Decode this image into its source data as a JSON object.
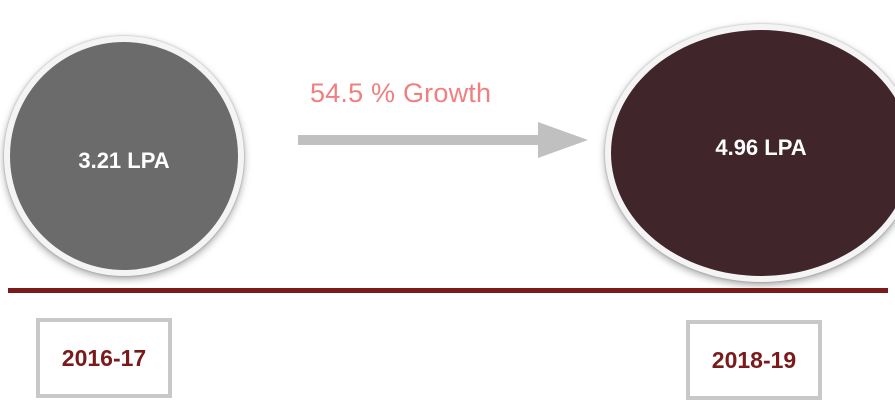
{
  "left": {
    "value_label": "3.21 LPA",
    "year": "2016-17",
    "color": "#6b6b6b"
  },
  "right": {
    "value_label": "4.96 LPA",
    "year": "2018-19",
    "color": "#40252a"
  },
  "growth": {
    "label": "54.5 % Growth",
    "color": "#f08080"
  },
  "arrow_icon": "right-arrow-icon",
  "colors": {
    "divider": "#7a1a1a",
    "year_text": "#7a1a1a",
    "arrow": "#c0c0c0",
    "box_border": "#c8c8c8"
  }
}
